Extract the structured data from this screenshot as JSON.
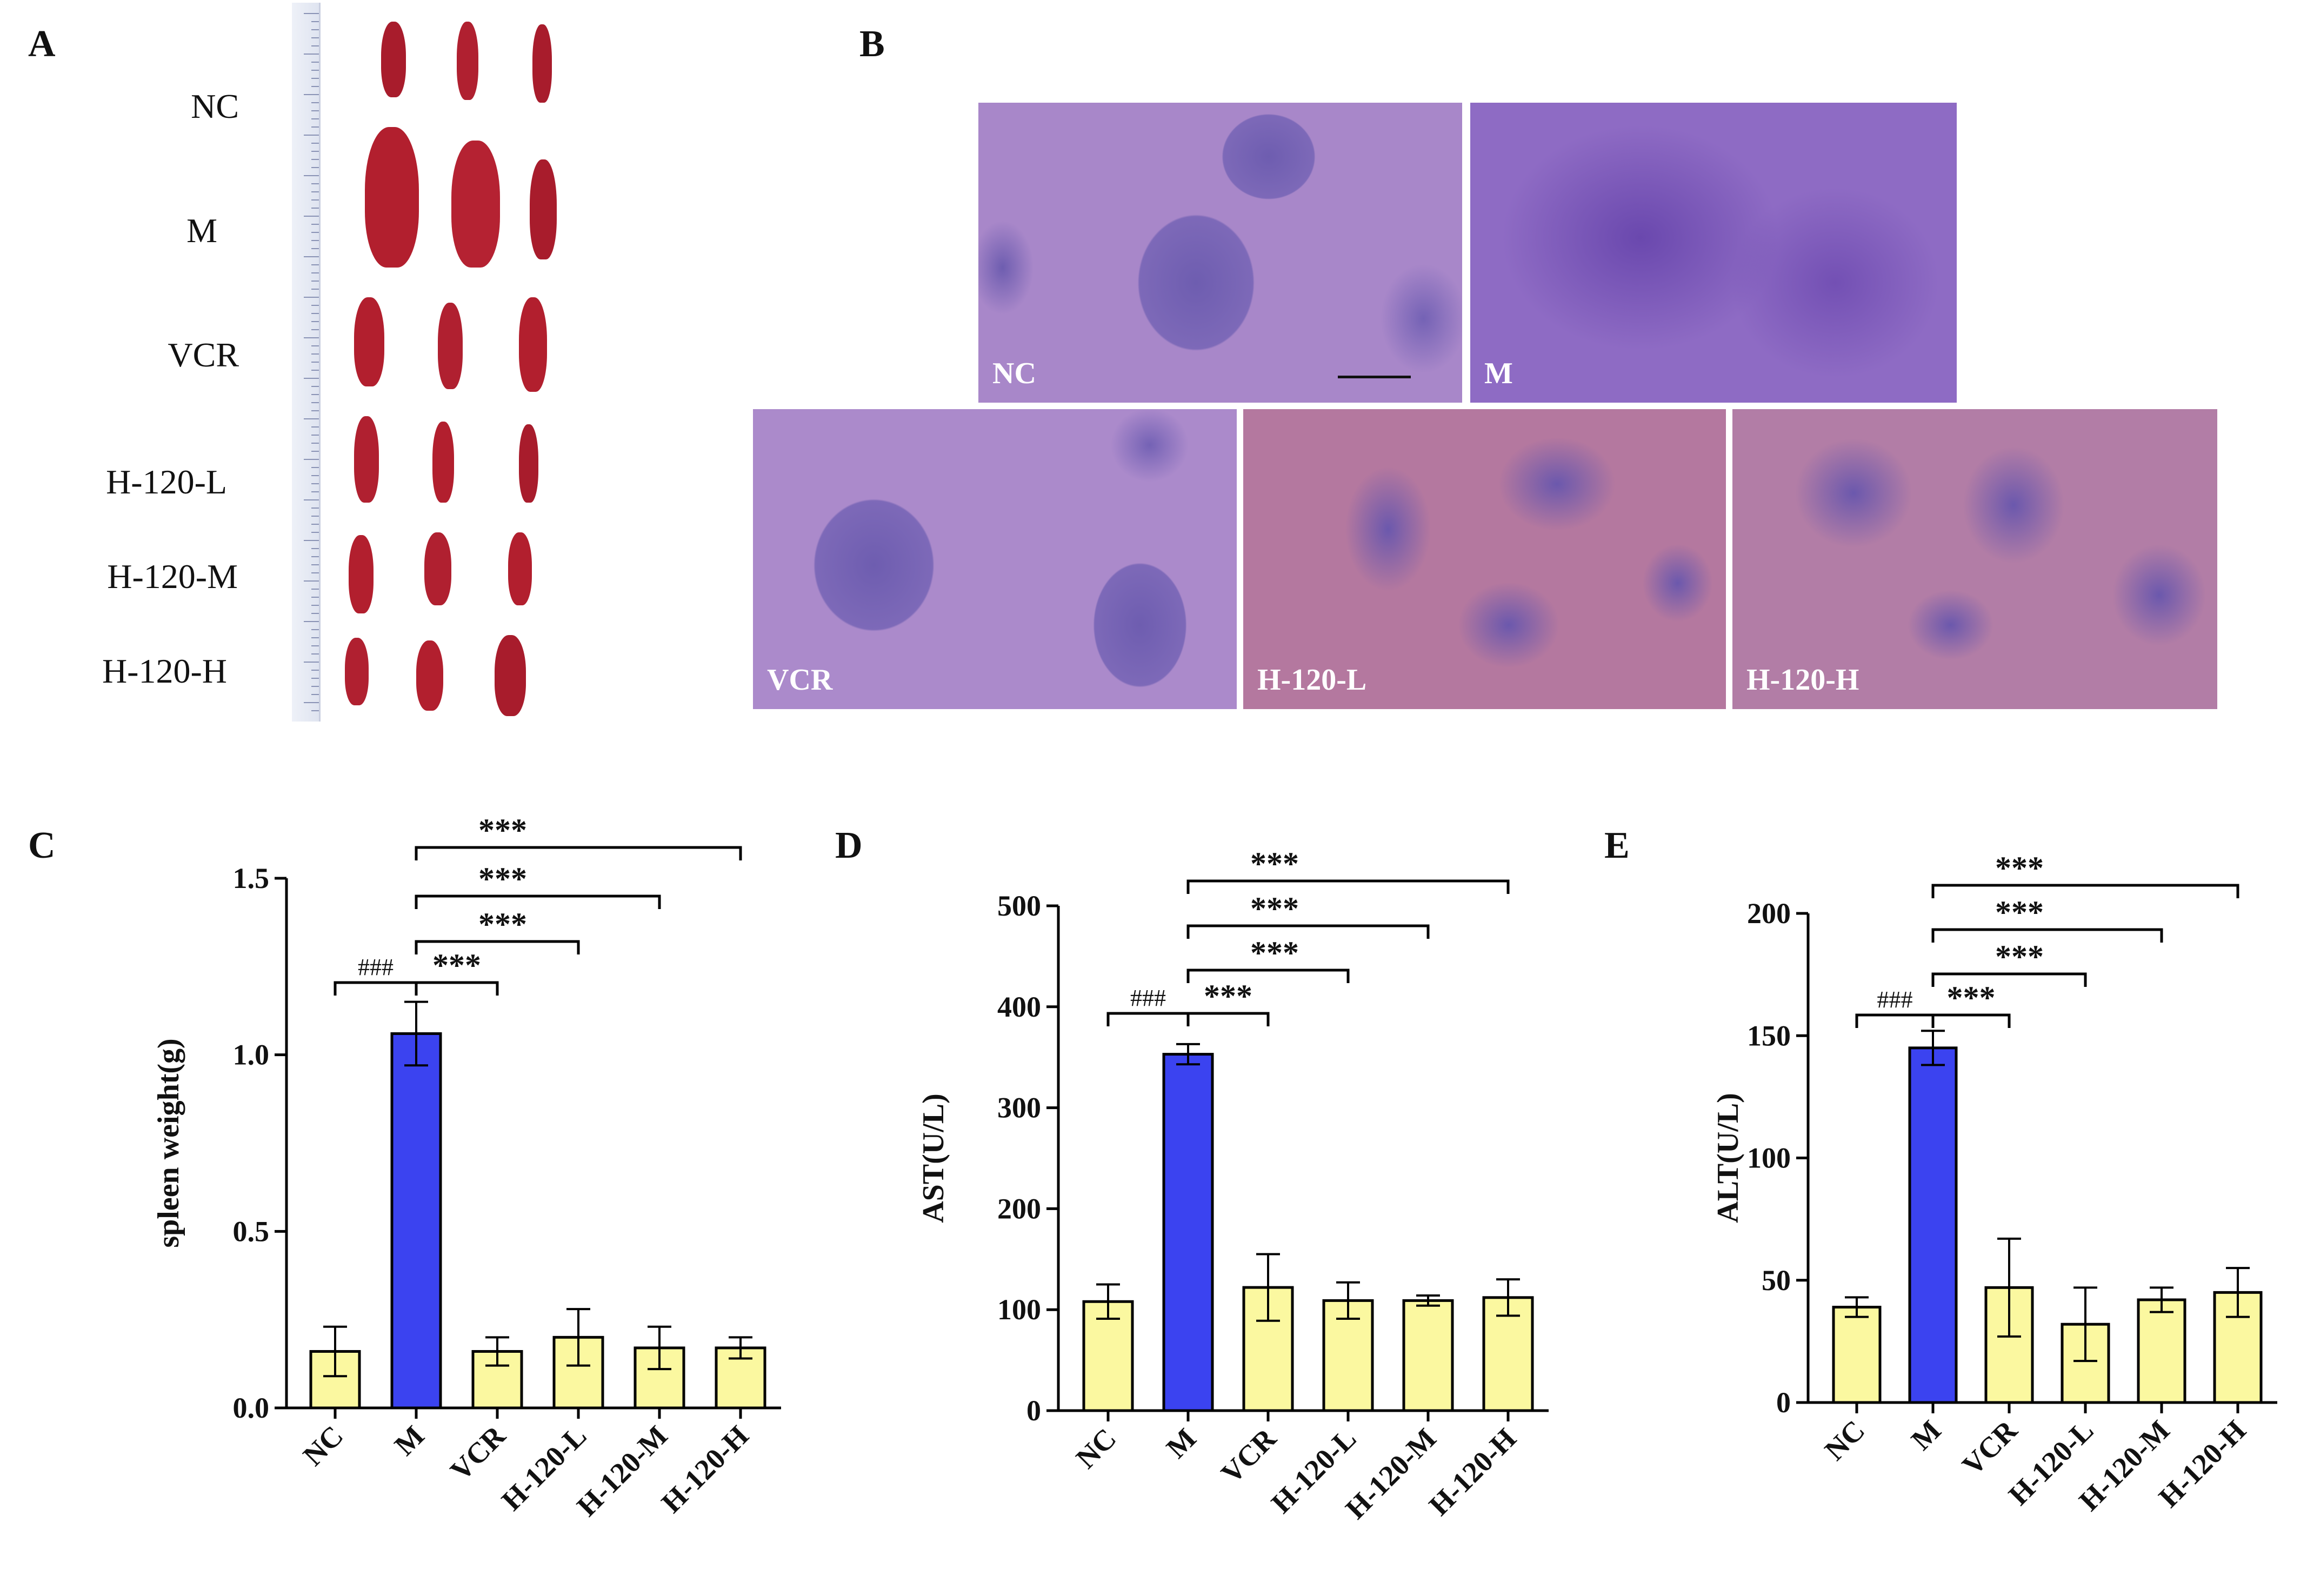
{
  "panel_letters": [
    "A",
    "B",
    "C",
    "D",
    "E"
  ],
  "spleen_panel": {
    "groups": [
      "NC",
      "M",
      "VCR",
      "H-120-L",
      "H-120-M",
      "H-120-H"
    ]
  },
  "histology_panel": {
    "images": [
      "NC",
      "M",
      "VCR",
      "H-120-L",
      "H-120-H"
    ]
  },
  "colors": {
    "model_bar": "#3b43f0",
    "other_bar": "#fbf8a0",
    "spleen": "#b21f2e",
    "ruler": "#dfe4f0"
  },
  "chart_data": [
    {
      "type": "bar",
      "ylabel": "spleen weight(g)",
      "categories": [
        "NC",
        "M",
        "VCR",
        "H-120-L",
        "H-120-M",
        "H-120-H"
      ],
      "values": [
        0.16,
        1.06,
        0.16,
        0.2,
        0.17,
        0.17
      ],
      "errors": [
        0.07,
        0.09,
        0.04,
        0.08,
        0.06,
        0.03
      ],
      "ylim": [
        0,
        1.5
      ],
      "yticks": [
        "0.0",
        "0.5",
        "1.0",
        "1.5"
      ],
      "significance": [
        "###",
        "***",
        "***",
        "***",
        "***"
      ]
    },
    {
      "type": "bar",
      "ylabel": "AST(U/L)",
      "categories": [
        "NC",
        "M",
        "VCR",
        "H-120-L",
        "H-120-M",
        "H-120-H"
      ],
      "values": [
        108,
        353,
        122,
        109,
        109,
        112
      ],
      "errors": [
        17,
        10,
        33,
        18,
        5,
        18
      ],
      "ylim": [
        0,
        500
      ],
      "yticks": [
        "0",
        "100",
        "200",
        "300",
        "400",
        "500"
      ],
      "significance": [
        "###",
        "***",
        "***",
        "***",
        "***"
      ]
    },
    {
      "type": "bar",
      "ylabel": "ALT(U/L)",
      "categories": [
        "NC",
        "M",
        "VCR",
        "H-120-L",
        "H-120-M",
        "H-120-H"
      ],
      "values": [
        39,
        145,
        47,
        32,
        42,
        45
      ],
      "errors": [
        4,
        7,
        20,
        15,
        5,
        10
      ],
      "ylim": [
        0,
        200
      ],
      "yticks": [
        "0",
        "50",
        "100",
        "150",
        "200"
      ],
      "significance": [
        "###",
        "***",
        "***",
        "***",
        "***"
      ]
    }
  ]
}
